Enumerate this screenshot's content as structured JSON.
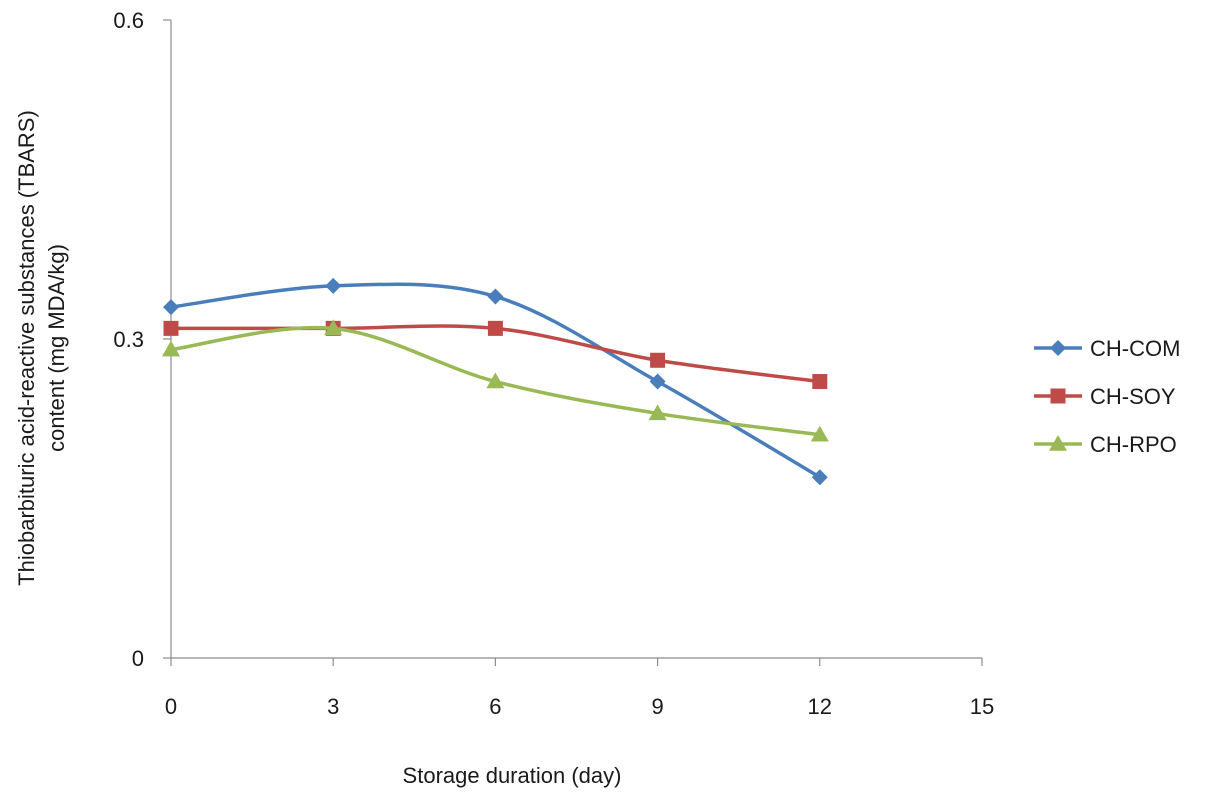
{
  "chart_data": {
    "type": "line",
    "title": "",
    "xlabel": "Storage duration (day)",
    "ylabel_lines": [
      "Thiobarbituric acid-reactive substances (TBARS)",
      "content (mg MDA/kg)"
    ],
    "xlim": [
      0,
      15
    ],
    "ylim": [
      0,
      0.6
    ],
    "x_ticks": [
      "0",
      "3",
      "6",
      "9",
      "12",
      "15"
    ],
    "y_ticks": [
      "0",
      "0.3",
      "0.6"
    ],
    "x": [
      0,
      3,
      6,
      9,
      12
    ],
    "grid": false,
    "legend_position": "right",
    "series": [
      {
        "name": "CH-COM",
        "marker": "diamond",
        "color": "#4a7ebb",
        "values": [
          0.33,
          0.35,
          0.34,
          0.26,
          0.17
        ]
      },
      {
        "name": "CH-SOY",
        "marker": "square",
        "color": "#be4b48",
        "values": [
          0.31,
          0.31,
          0.31,
          0.28,
          0.26
        ]
      },
      {
        "name": "CH-RPO",
        "marker": "triangle",
        "color": "#98b954",
        "values": [
          0.29,
          0.31,
          0.26,
          0.23,
          0.21
        ]
      }
    ]
  }
}
